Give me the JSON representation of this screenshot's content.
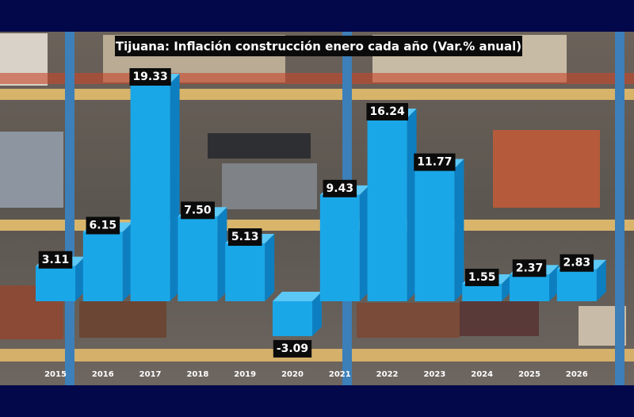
{
  "chart_data": {
    "type": "bar3d",
    "title": "Tijuana: Inflación construcción enero cada año (Var.% anual)",
    "categories": [
      "2015",
      "2016",
      "2017",
      "2018",
      "2019",
      "2020",
      "2021",
      "2022",
      "2023",
      "2024",
      "2025",
      "2026"
    ],
    "values": [
      3.11,
      6.15,
      19.33,
      7.5,
      5.13,
      -3.09,
      9.43,
      16.24,
      11.77,
      1.55,
      2.37,
      2.83
    ],
    "value_labels": [
      "3.11",
      "6.15",
      "19.33",
      "7.50",
      "5.13",
      "-3.09",
      "9.43",
      "16.24",
      "11.77",
      "1.55",
      "2.37",
      "2.83"
    ],
    "color": "#1aa7e8"
  }
}
